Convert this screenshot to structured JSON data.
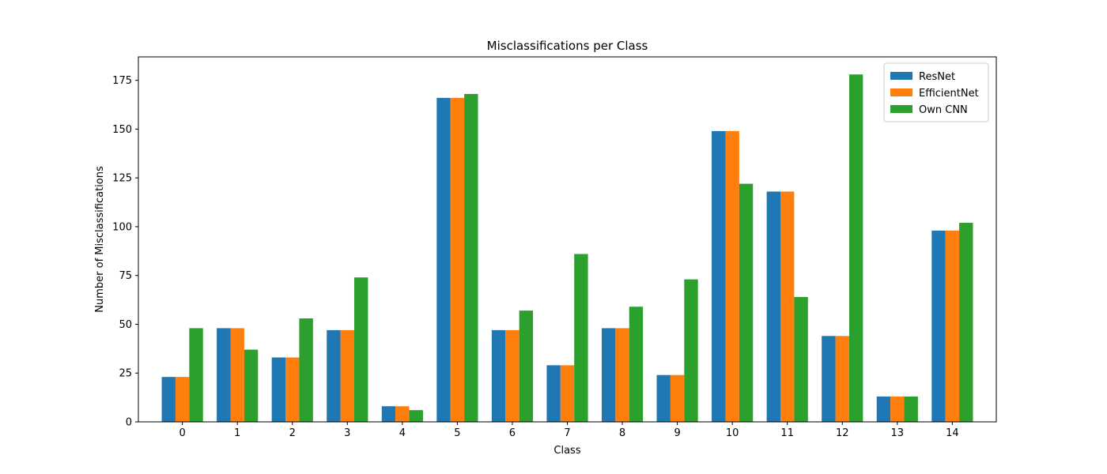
{
  "chart_data": {
    "type": "bar",
    "title": "Misclassifications per Class",
    "xlabel": "Class",
    "ylabel": "Number of Misclassifications",
    "categories": [
      "0",
      "1",
      "2",
      "3",
      "4",
      "5",
      "6",
      "7",
      "8",
      "9",
      "10",
      "11",
      "12",
      "13",
      "14"
    ],
    "series": [
      {
        "name": "ResNet",
        "color": "#1f77b4",
        "values": [
          23,
          48,
          33,
          47,
          8,
          166,
          47,
          29,
          48,
          24,
          149,
          118,
          44,
          13,
          98
        ]
      },
      {
        "name": "EfficientNet",
        "color": "#ff7f0e",
        "values": [
          23,
          48,
          33,
          47,
          8,
          166,
          47,
          29,
          48,
          24,
          149,
          118,
          44,
          13,
          98
        ]
      },
      {
        "name": "Own CNN",
        "color": "#2ca02c",
        "values": [
          48,
          37,
          53,
          74,
          6,
          168,
          57,
          86,
          59,
          73,
          122,
          64,
          178,
          13,
          102
        ]
      }
    ],
    "ylim": [
      0,
      187
    ],
    "yticks": [
      0,
      25,
      50,
      75,
      100,
      125,
      150,
      175
    ],
    "grid": false,
    "legend_position": "top-right"
  }
}
